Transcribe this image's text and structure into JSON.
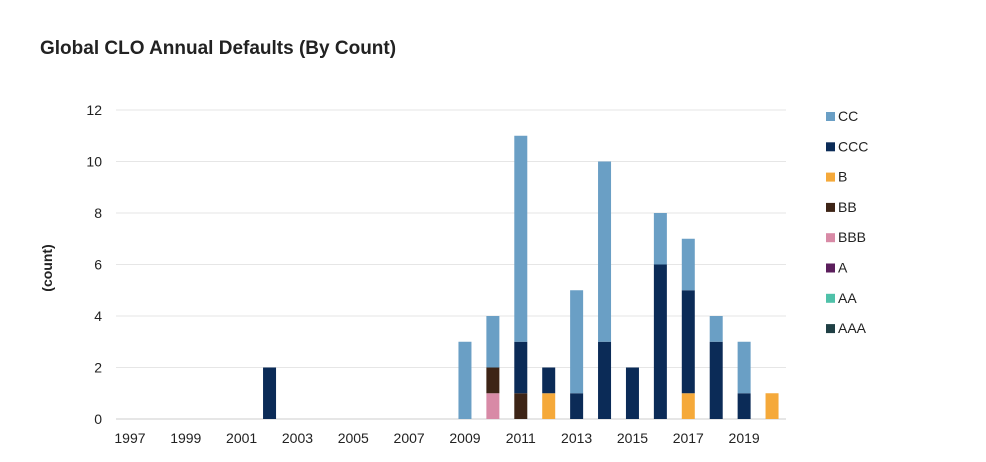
{
  "chart_data": {
    "type": "bar",
    "stacked": true,
    "title": "Global CLO Annual Defaults (By Count)",
    "xlabel": "",
    "ylabel": "(count)",
    "ylim": [
      0,
      12
    ],
    "yticks": [
      0,
      2,
      4,
      6,
      8,
      10,
      12
    ],
    "grid": true,
    "legend_position": "right",
    "categories": [
      "1997",
      "1998",
      "1999",
      "2000",
      "2001",
      "2002",
      "2003",
      "2004",
      "2005",
      "2006",
      "2007",
      "2008",
      "2009",
      "2010",
      "2011",
      "2012",
      "2013",
      "2014",
      "2015",
      "2016",
      "2017",
      "2018",
      "2019",
      "2020"
    ],
    "xtick_labels": [
      "1997",
      "1999",
      "2001",
      "2003",
      "2005",
      "2007",
      "2009",
      "2011",
      "2013",
      "2015",
      "2017",
      "2019"
    ],
    "series": [
      {
        "name": "AAA",
        "color": "#1f3f44",
        "values": [
          0,
          0,
          0,
          0,
          0,
          0,
          0,
          0,
          0,
          0,
          0,
          0,
          0,
          0,
          0,
          0,
          0,
          0,
          0,
          0,
          0,
          0,
          0,
          0
        ]
      },
      {
        "name": "AA",
        "color": "#4fc1a9",
        "values": [
          0,
          0,
          0,
          0,
          0,
          0,
          0,
          0,
          0,
          0,
          0,
          0,
          0,
          0,
          0,
          0,
          0,
          0,
          0,
          0,
          0,
          0,
          0,
          0
        ]
      },
      {
        "name": "A",
        "color": "#5b1e5c",
        "values": [
          0,
          0,
          0,
          0,
          0,
          0,
          0,
          0,
          0,
          0,
          0,
          0,
          0,
          0,
          0,
          0,
          0,
          0,
          0,
          0,
          0,
          0,
          0,
          0
        ]
      },
      {
        "name": "BBB",
        "color": "#d88aa6",
        "values": [
          0,
          0,
          0,
          0,
          0,
          0,
          0,
          0,
          0,
          0,
          0,
          0,
          0,
          1,
          0,
          0,
          0,
          0,
          0,
          0,
          0,
          0,
          0,
          0
        ]
      },
      {
        "name": "BB",
        "color": "#3d2416",
        "values": [
          0,
          0,
          0,
          0,
          0,
          0,
          0,
          0,
          0,
          0,
          0,
          0,
          0,
          1,
          1,
          0,
          0,
          0,
          0,
          0,
          0,
          0,
          0,
          0
        ]
      },
      {
        "name": "B",
        "color": "#f5a93a",
        "values": [
          0,
          0,
          0,
          0,
          0,
          0,
          0,
          0,
          0,
          0,
          0,
          0,
          0,
          0,
          0,
          1,
          0,
          0,
          0,
          0,
          1,
          0,
          0,
          1
        ]
      },
      {
        "name": "CCC",
        "color": "#0b2b57",
        "values": [
          0,
          0,
          0,
          0,
          0,
          2,
          0,
          0,
          0,
          0,
          0,
          0,
          0,
          0,
          2,
          1,
          1,
          3,
          2,
          6,
          4,
          3,
          1,
          0
        ]
      },
      {
        "name": "CC",
        "color": "#6a9fc5",
        "values": [
          0,
          0,
          0,
          0,
          0,
          0,
          0,
          0,
          0,
          0,
          0,
          0,
          3,
          2,
          8,
          0,
          4,
          7,
          0,
          2,
          2,
          1,
          2,
          0
        ]
      }
    ],
    "legend_order": [
      "CC",
      "CCC",
      "B",
      "BB",
      "BBB",
      "A",
      "AA",
      "AAA"
    ]
  }
}
